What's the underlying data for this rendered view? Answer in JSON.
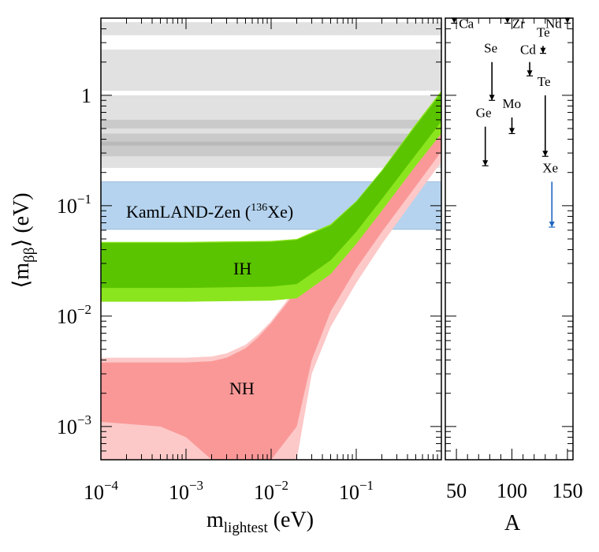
{
  "chart_data": [
    {
      "type": "area",
      "xlabel": "m",
      "xlabel_sub": "lightest",
      "xlabel_unit": " (eV)",
      "ylabel": "⟨m",
      "ylabel_sub": "ββ",
      "ylabel_unit": "⟩ (eV)",
      "xscale": "log",
      "yscale": "log",
      "xlim": [
        0.0001,
        1
      ],
      "ylim": [
        0.0005,
        5
      ],
      "x_ticks": [
        {
          "value": 0.0001,
          "base": "10",
          "exp": "−4"
        },
        {
          "value": 0.001,
          "base": "10",
          "exp": "−3"
        },
        {
          "value": 0.01,
          "base": "10",
          "exp": "−2"
        },
        {
          "value": 0.1,
          "base": "10",
          "exp": "−1"
        }
      ],
      "y_ticks": [
        {
          "value": 0.001,
          "base": "10",
          "exp": "−3"
        },
        {
          "value": 0.01,
          "base": "10",
          "exp": "−2"
        },
        {
          "value": 0.1,
          "base": "10",
          "exp": "−1"
        },
        {
          "value": 1,
          "base": "1",
          "exp": ""
        }
      ],
      "exclusion_bands_eV": [
        [
          4.0,
          4.6
        ],
        [
          3.5,
          4.0
        ],
        [
          2.2,
          2.6
        ],
        [
          1.1,
          2.2
        ],
        [
          0.9,
          1.0
        ],
        [
          0.5,
          0.9
        ],
        [
          0.35,
          0.6
        ],
        [
          0.28,
          0.45
        ],
        [
          0.22,
          0.38
        ]
      ],
      "kamland_band": {
        "label": "KamLAND-Zen (",
        "sup": "136",
        "label_end": "Xe)",
        "range": [
          0.061,
          0.165
        ],
        "color": "#b5d3ee"
      },
      "series": [
        {
          "name": "IH",
          "color_3sigma": "#8be51e",
          "color_1sigma": "#5bc400",
          "x": [
            0.0001,
            0.001,
            0.01,
            0.02,
            0.05,
            0.1,
            0.2,
            0.5,
            1.0
          ],
          "outer_min": [
            0.0135,
            0.0135,
            0.0138,
            0.0145,
            0.024,
            0.045,
            0.09,
            0.23,
            0.45
          ],
          "outer_max": [
            0.047,
            0.047,
            0.048,
            0.05,
            0.068,
            0.11,
            0.21,
            0.55,
            1.1
          ],
          "inner_min": [
            0.018,
            0.018,
            0.0185,
            0.0195,
            0.032,
            0.058,
            0.115,
            0.29,
            0.58
          ],
          "inner_max": [
            0.046,
            0.046,
            0.047,
            0.049,
            0.066,
            0.108,
            0.205,
            0.53,
            1.05
          ]
        },
        {
          "name": "NH",
          "color_3sigma": "#fdc8c8",
          "color_1sigma": "#fa9898",
          "x": [
            0.0001,
            0.0005,
            0.001,
            0.002,
            0.003,
            0.005,
            0.007,
            0.01,
            0.02,
            0.03,
            0.05,
            0.1,
            0.2,
            0.5,
            1.0
          ],
          "outer_min": [
            0.0005,
            0.0005,
            0.0005,
            0.0005,
            0.0005,
            0.0005,
            0.0005,
            0.0005,
            0.0005,
            0.003,
            0.008,
            0.02,
            0.045,
            0.12,
            0.25
          ],
          "outer_max": [
            0.0042,
            0.0042,
            0.0042,
            0.0043,
            0.0046,
            0.0055,
            0.0068,
            0.009,
            0.018,
            0.027,
            0.049,
            0.1,
            0.2,
            0.51,
            1.02
          ],
          "inner_min": [
            0.0011,
            0.001,
            0.0008,
            0.0005,
            0.0005,
            0.0005,
            0.0005,
            0.0005,
            0.001,
            0.004,
            0.011,
            0.027,
            0.058,
            0.15,
            0.31
          ],
          "inner_max": [
            0.0038,
            0.0038,
            0.0038,
            0.0039,
            0.0042,
            0.0051,
            0.0064,
            0.0086,
            0.017,
            0.026,
            0.047,
            0.098,
            0.195,
            0.5,
            1.0
          ]
        }
      ]
    },
    {
      "type": "scatter",
      "xlabel": "A",
      "xlim": [
        40,
        155
      ],
      "x_ticks": [
        50,
        100,
        150
      ],
      "points": [
        {
          "label": "Ca",
          "A": 48,
          "limit": 4.5,
          "top": 4.5,
          "color": "#000000",
          "label_dx": 6,
          "label_dy": 6
        },
        {
          "label": "Zr",
          "A": 96,
          "limit": 4.5,
          "top": 4.5,
          "color": "#000000",
          "label_dx": 6,
          "label_dy": 6
        },
        {
          "label": "Nd",
          "A": 150,
          "limit": 4.5,
          "top": 4.5,
          "color": "#000000",
          "label_dx": -28,
          "label_dy": 6
        },
        {
          "label": "Te",
          "A": 128,
          "limit": 2.4,
          "top": 2.8,
          "color": "#000000",
          "label_dx": -8,
          "label_dy": -12
        },
        {
          "label": "Cd",
          "A": 116,
          "limit": 1.5,
          "top": 2.0,
          "color": "#000000",
          "label_dx": -12,
          "label_dy": -10
        },
        {
          "label": "Se",
          "A": 82,
          "limit": 0.9,
          "top": 2.0,
          "color": "#000000",
          "label_dx": -10,
          "label_dy": -12
        },
        {
          "label": "Te",
          "A": 130,
          "limit": 0.28,
          "top": 1.0,
          "color": "#000000",
          "label_dx": -10,
          "label_dy": -12
        },
        {
          "label": "Mo",
          "A": 100,
          "limit": 0.45,
          "top": 0.63,
          "color": "#000000",
          "label_dx": -12,
          "label_dy": -12
        },
        {
          "label": "Ge",
          "A": 76,
          "limit": 0.23,
          "top": 0.52,
          "color": "#000000",
          "label_dx": -12,
          "label_dy": -12
        },
        {
          "label": "Xe",
          "A": 136,
          "limit": 0.064,
          "top": 0.165,
          "color": "#1f67c1",
          "label_dx": -12,
          "label_dy": -12
        }
      ]
    }
  ]
}
